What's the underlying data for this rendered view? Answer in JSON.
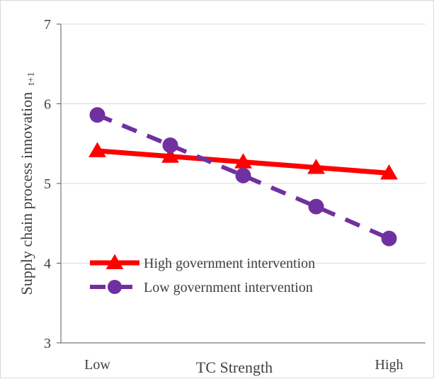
{
  "chart_data": {
    "type": "line",
    "title": "",
    "xlabel": "TC Strength",
    "ylabel": "Supply chain process innovation",
    "ylabel_subscript": "t+1",
    "x": [
      1,
      2,
      3,
      4,
      5
    ],
    "x_tick_labels": [
      {
        "x": 1,
        "label": "Low"
      },
      {
        "x": 5,
        "label": "High"
      }
    ],
    "ylim": [
      3,
      7
    ],
    "y_ticks": [
      3,
      4,
      5,
      6,
      7
    ],
    "grid": true,
    "legend_position": "lower-left",
    "series": [
      {
        "name": "High government intervention",
        "color": "#ff0000",
        "line_style": "solid",
        "marker": "triangle",
        "values": [
          5.41,
          5.34,
          5.27,
          5.2,
          5.13
        ]
      },
      {
        "name": "Low government intervention",
        "color": "#7030a0",
        "line_style": "dashed",
        "marker": "circle",
        "values": [
          5.86,
          5.48,
          5.1,
          4.71,
          4.31
        ]
      }
    ]
  }
}
